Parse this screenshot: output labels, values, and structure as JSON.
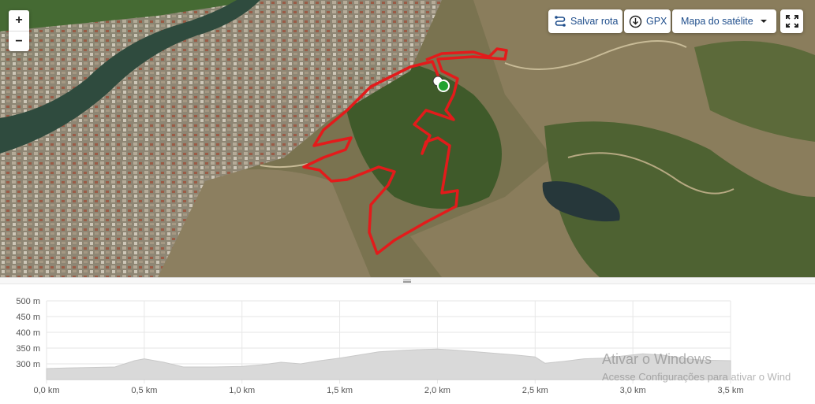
{
  "map": {
    "zoom_in": "+",
    "zoom_out": "−",
    "save_route_label": "Salvar rota",
    "gpx_label": "GPX",
    "layer_label": "Mapa do satélite",
    "fullscreen_icon": "fullscreen-icon"
  },
  "watermark": {
    "line1": "Ativar o Windows",
    "line2": "Acesse Configurações para ativar o Wind"
  },
  "chart_data": {
    "type": "area",
    "title": "",
    "xlabel": "",
    "ylabel": "",
    "xlim": [
      0,
      3.5
    ],
    "ylim": [
      250,
      500
    ],
    "x_ticks": [
      "0,0 km",
      "0,5 km",
      "1,0 km",
      "1,5 km",
      "2,0 km",
      "2,5 km",
      "3,0 km",
      "3,5 km"
    ],
    "y_ticks": [
      "500 m",
      "450 m",
      "400 m",
      "350 m",
      "300 m"
    ],
    "grid": true,
    "color": "#d9d9d9",
    "series": [
      {
        "x": [
          0,
          0.1,
          0.2,
          0.35,
          0.45,
          0.5,
          0.6,
          0.7,
          0.85,
          1.0,
          1.1,
          1.2,
          1.3,
          1.4,
          1.5,
          1.6,
          1.7,
          1.8,
          1.9,
          2.0,
          2.1,
          2.2,
          2.3,
          2.4,
          2.5,
          2.55,
          2.65,
          2.75,
          2.85,
          2.95,
          3.05,
          3.15,
          3.25,
          3.35,
          3.5
        ],
        "y": [
          285,
          287,
          288,
          290,
          310,
          316,
          305,
          290,
          290,
          292,
          297,
          305,
          300,
          310,
          318,
          328,
          338,
          342,
          345,
          347,
          343,
          338,
          333,
          328,
          322,
          302,
          308,
          316,
          318,
          325,
          332,
          328,
          318,
          312,
          310
        ]
      }
    ]
  }
}
